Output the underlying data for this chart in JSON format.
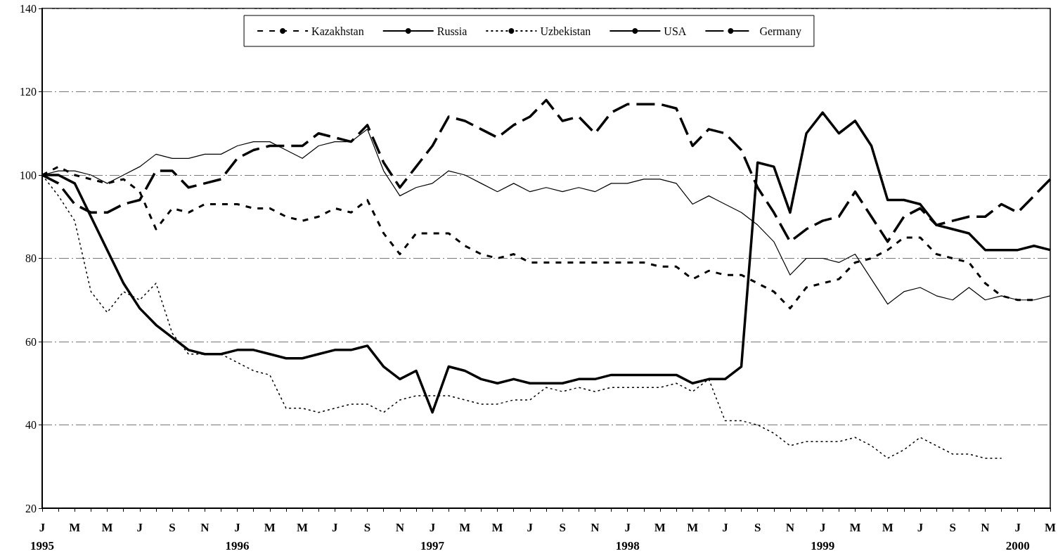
{
  "chart_data": {
    "type": "line",
    "categories": [
      "J\n1995",
      null,
      "M",
      null,
      "M",
      null,
      "J",
      null,
      "S",
      null,
      "N",
      null,
      "J\n1996",
      null,
      "M",
      null,
      "M",
      null,
      "J",
      null,
      "S",
      null,
      "N",
      null,
      "J\n1997",
      null,
      "M",
      null,
      "M",
      null,
      "J",
      null,
      "S",
      null,
      "N",
      null,
      "J\n1998",
      null,
      "M",
      null,
      "M",
      null,
      "J",
      null,
      "S",
      null,
      "N",
      null,
      "J\n1999",
      null,
      "M",
      null,
      "M",
      null,
      "J",
      null,
      "S",
      null,
      "N",
      null,
      "J\n2000",
      null,
      "M"
    ],
    "series": [
      {
        "name": "Kazakhstan",
        "color": "#000000",
        "line_style": "dashed",
        "values": [
          100,
          102,
          100,
          99,
          98,
          99,
          96,
          87,
          92,
          91,
          93,
          93,
          93,
          92,
          92,
          90,
          89,
          90,
          92,
          91,
          94,
          86,
          81,
          86,
          86,
          86,
          83,
          81,
          80,
          81,
          79,
          79,
          79,
          79,
          79,
          79,
          79,
          79,
          78,
          78,
          75,
          77,
          76,
          76,
          74,
          72,
          68,
          73,
          74,
          75,
          79,
          80,
          82,
          85,
          85,
          81,
          80,
          79,
          74,
          71,
          70,
          70,
          null
        ]
      },
      {
        "name": "Russia",
        "color": "#000000",
        "line_style": "solid",
        "values": [
          100,
          100,
          98,
          90,
          82,
          74,
          68,
          64,
          61,
          58,
          57,
          57,
          58,
          58,
          57,
          56,
          56,
          57,
          58,
          58,
          59,
          54,
          51,
          53,
          43,
          54,
          53,
          51,
          50,
          51,
          50,
          50,
          50,
          51,
          51,
          52,
          52,
          52,
          52,
          52,
          50,
          51,
          51,
          54,
          103,
          102,
          91,
          110,
          115,
          110,
          113,
          107,
          94,
          94,
          93,
          88,
          87,
          86,
          82,
          82,
          82,
          83,
          82
        ]
      },
      {
        "name": "Uzbekistan",
        "color": "#000000",
        "line_style": "dotted",
        "values": [
          100,
          95,
          89,
          72,
          67,
          72,
          70,
          74,
          62,
          57,
          57,
          57,
          55,
          53,
          52,
          44,
          44,
          43,
          44,
          45,
          45,
          43,
          46,
          47,
          47,
          47,
          46,
          45,
          45,
          46,
          46,
          49,
          48,
          49,
          48,
          49,
          49,
          49,
          49,
          50,
          48,
          51,
          41,
          41,
          40,
          38,
          35,
          36,
          36,
          36,
          37,
          35,
          32,
          34,
          37,
          35,
          33,
          33,
          32,
          32,
          null,
          null,
          null
        ]
      },
      {
        "name": "USA",
        "color": "#000000",
        "line_style": "solid",
        "values": [
          100,
          101,
          101,
          100,
          98,
          100,
          102,
          105,
          104,
          104,
          105,
          105,
          107,
          108,
          108,
          106,
          104,
          107,
          108,
          108,
          111,
          101,
          95,
          97,
          98,
          101,
          100,
          98,
          96,
          98,
          96,
          97,
          96,
          97,
          96,
          98,
          98,
          99,
          99,
          98,
          93,
          95,
          93,
          91,
          88,
          84,
          76,
          80,
          80,
          79,
          81,
          75,
          69,
          72,
          73,
          71,
          70,
          73,
          70,
          71,
          70,
          70,
          71
        ]
      },
      {
        "name": "Germany",
        "color": "#000000",
        "line_style": "dashed",
        "values": [
          100,
          98,
          93,
          91,
          91,
          93,
          94,
          101,
          101,
          97,
          98,
          99,
          104,
          106,
          107,
          107,
          107,
          110,
          109,
          108,
          112,
          103,
          97,
          102,
          107,
          114,
          113,
          111,
          109,
          112,
          114,
          118,
          113,
          114,
          110,
          115,
          117,
          117,
          117,
          116,
          107,
          111,
          110,
          106,
          97,
          91,
          84,
          87,
          89,
          90,
          96,
          90,
          84,
          90,
          92,
          88,
          89,
          90,
          90,
          93,
          91,
          95,
          99
        ]
      }
    ],
    "ylim": [
      20,
      140
    ],
    "yticks": [
      20,
      40,
      60,
      80,
      100,
      120,
      140
    ],
    "grid": "y",
    "legend": "top",
    "marker": "none"
  }
}
